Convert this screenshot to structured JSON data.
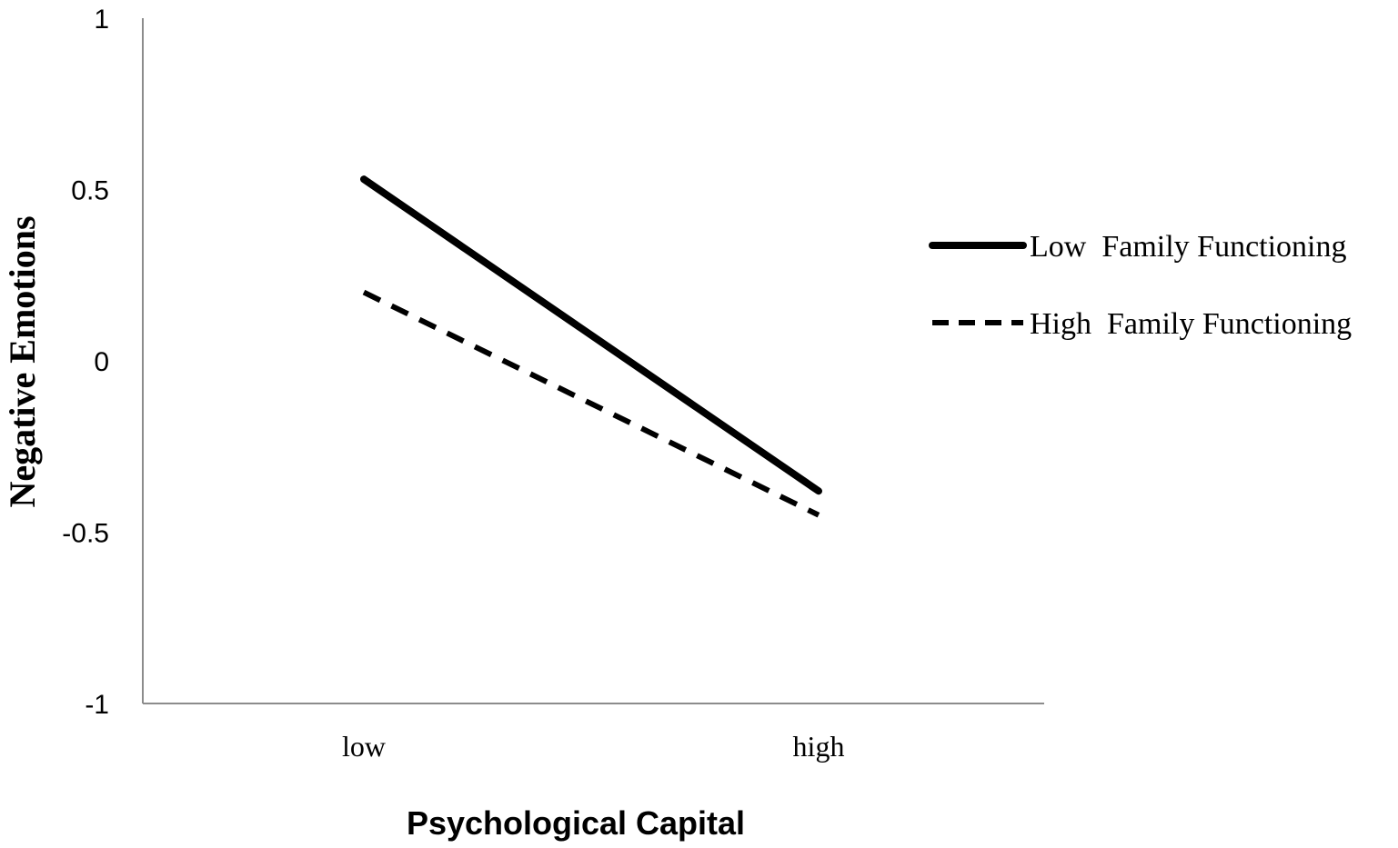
{
  "chart_data": {
    "type": "line",
    "xlabel": "Psychological Capital",
    "ylabel": "Negative Emotions",
    "categories": [
      "low",
      "high"
    ],
    "ylim": [
      -1,
      1
    ],
    "yticks": [
      "1",
      "0.5",
      "0",
      "-0.5",
      "-1"
    ],
    "grid": false,
    "legend_position": "right",
    "series": [
      {
        "name": "Low  Family Functioning",
        "style": "solid",
        "color": "#000000",
        "values": [
          0.53,
          -0.38
        ]
      },
      {
        "name": "High  Family Functioning",
        "style": "dashed",
        "color": "#000000",
        "values": [
          0.2,
          -0.45
        ]
      }
    ]
  }
}
